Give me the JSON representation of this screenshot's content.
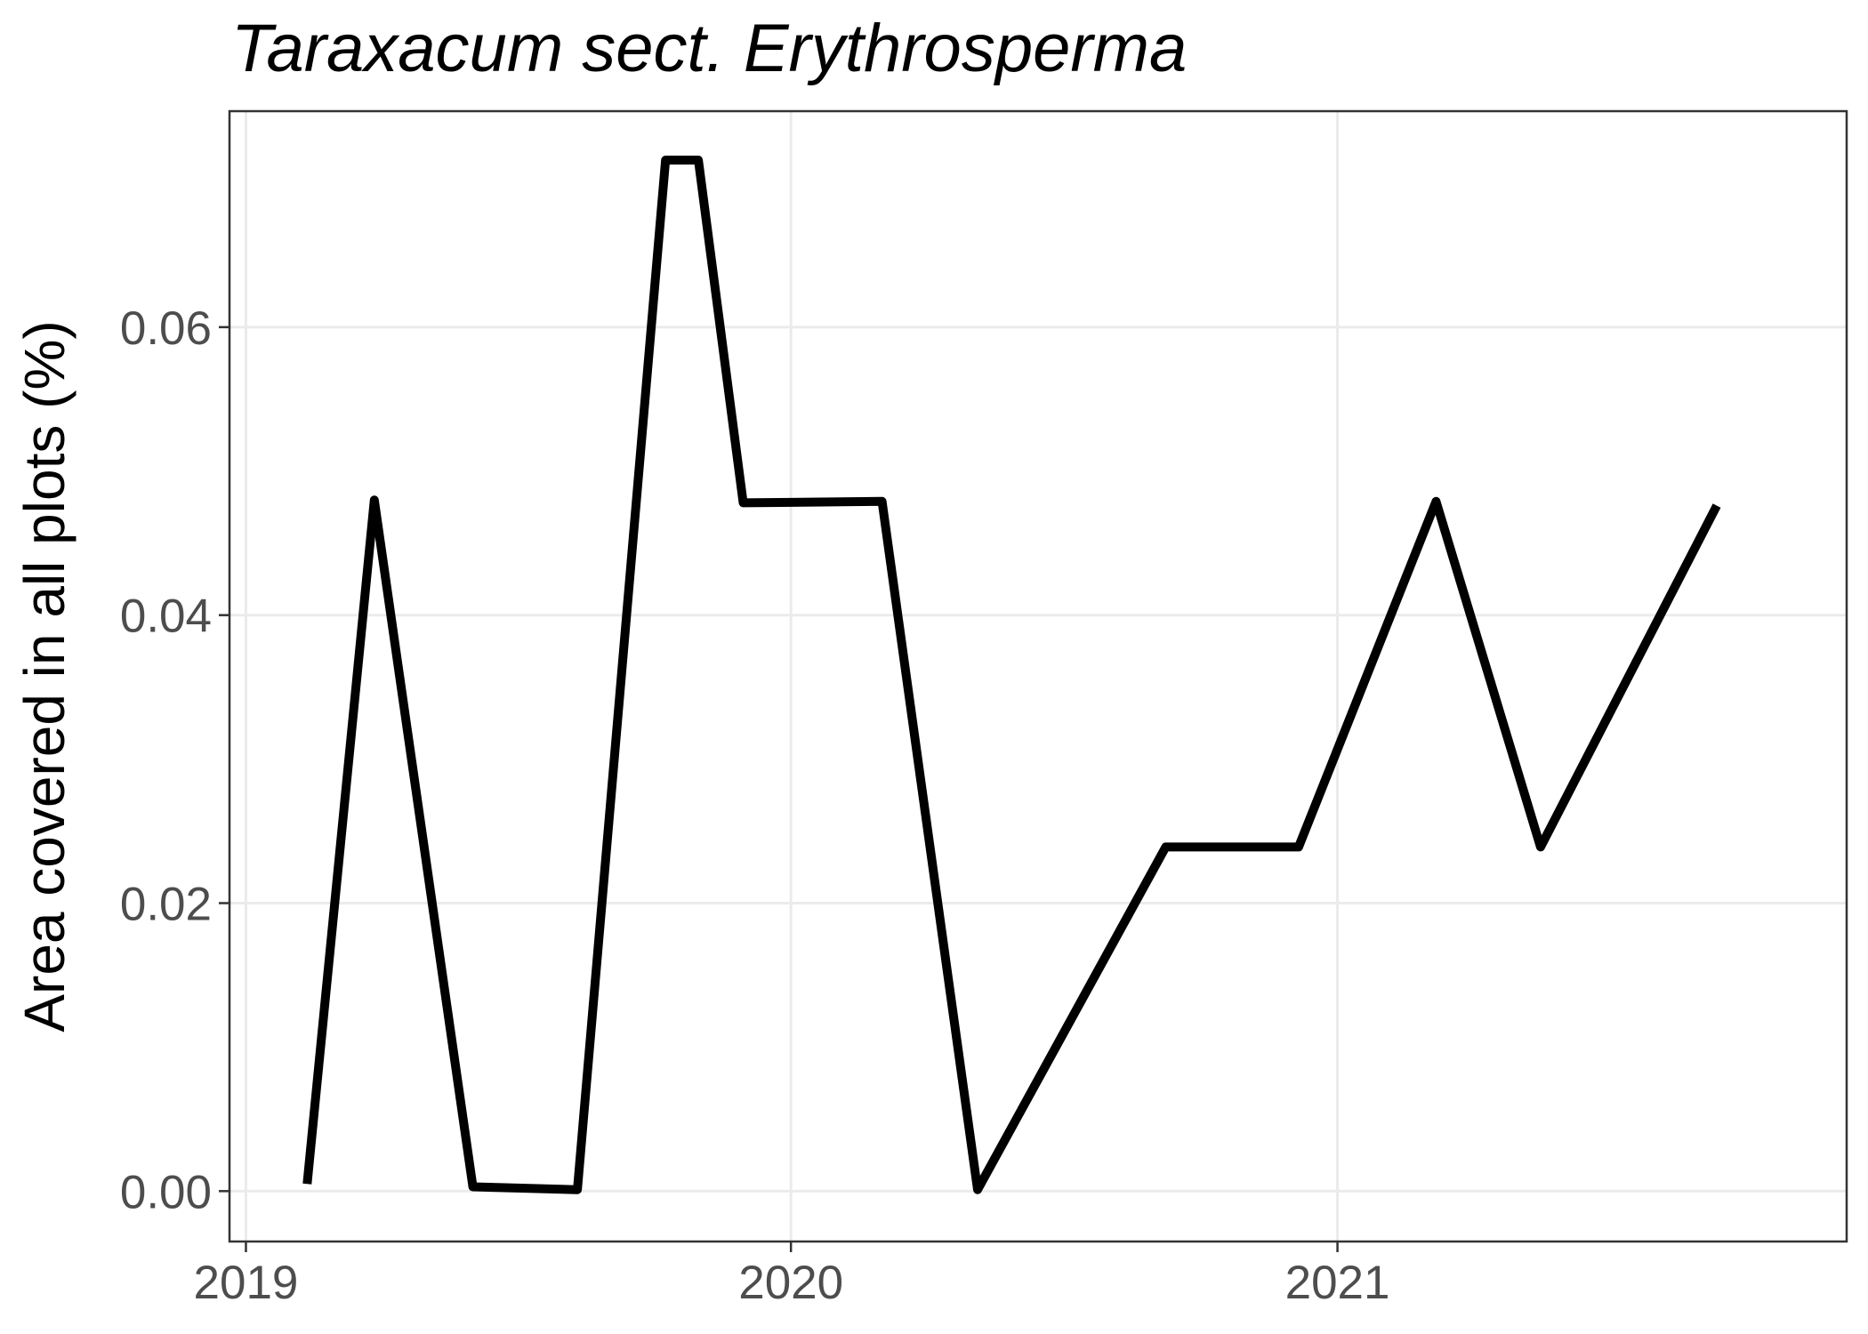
{
  "chart_data": {
    "type": "line",
    "title": "Taraxacum sect. Erythrosperma",
    "xlabel": "",
    "ylabel": "Area covered in all plots (%)",
    "x_ticks": [
      "2019",
      "2020",
      "2021"
    ],
    "y_ticks": [
      "0.00",
      "0.02",
      "0.04",
      "0.06"
    ],
    "y_tick_values": [
      0,
      0.02,
      0.04,
      0.06
    ],
    "xlim": [
      "2018-12-21",
      "2021-12-08"
    ],
    "ylim": [
      -0.0035,
      0.075
    ],
    "grid": true,
    "colors": {
      "line": "#000000",
      "grid": "#ebebeb",
      "border": "#333333"
    },
    "series": [
      {
        "x": [
          "2019-02-11",
          "2019-03-28",
          "2019-06-02",
          "2019-08-11",
          "2019-10-09",
          "2019-10-31",
          "2019-11-30",
          "2020-03-02",
          "2020-05-05",
          "2020-09-08",
          "2020-12-06",
          "2021-03-08",
          "2021-05-17",
          "2021-09-12"
        ],
        "values": [
          0.0005,
          0.048,
          0.0003,
          0.0001,
          0.0716,
          0.0716,
          0.0478,
          0.0479,
          0.0001,
          0.0239,
          0.0239,
          0.0479,
          0.0239,
          0.0476
        ]
      }
    ]
  }
}
